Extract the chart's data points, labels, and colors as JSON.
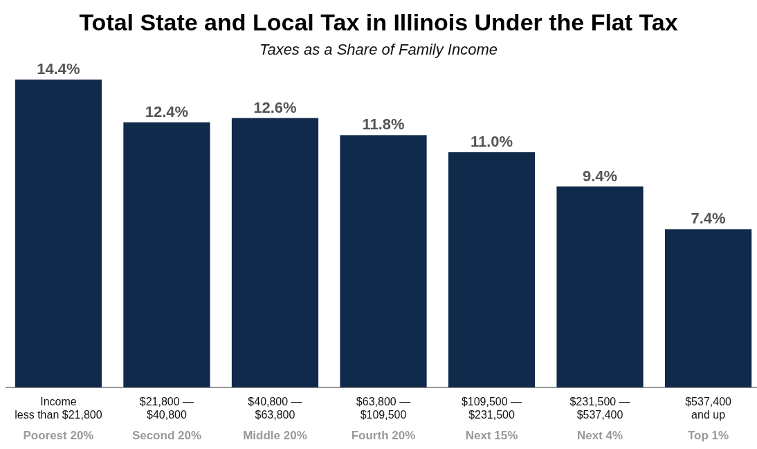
{
  "chart_data": {
    "type": "bar",
    "title": "Total State and Local Tax in Illinois Under the Flat Tax",
    "subtitle": "Taxes as a Share of Family Income",
    "categories": [
      "Income\nless than $21,800\nPoorest 20%",
      "$21,800 —\n$40,800\nSecond 20%",
      "$40,800 —\n$63,800\nMiddle 20%",
      "$63,800 —\n$109,500\nFourth 20%",
      "$109,500 —\n$231,500\nNext 15%",
      "$231,500 —\n$537,400\nNext 4%",
      "$537,400\nand up\nTop 1%"
    ],
    "values": [
      14.4,
      12.4,
      12.6,
      11.8,
      11.0,
      9.4,
      7.4
    ],
    "value_labels": [
      "14.4%",
      "12.4%",
      "12.6%",
      "11.8%",
      "11.0%",
      "9.4%",
      "7.4%"
    ],
    "color": "#102a4c"
  }
}
